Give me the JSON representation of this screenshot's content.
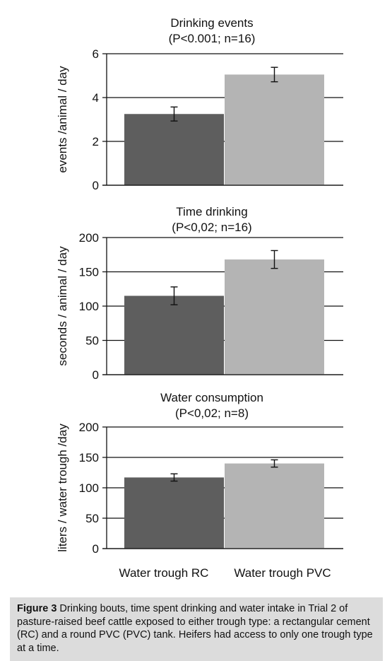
{
  "chart_data": [
    {
      "type": "bar",
      "title": "Drinking events",
      "subtitle": "(P<0.001; n=16)",
      "ylabel": "events /animal / day",
      "categories": [
        "Water trough RC",
        "Water trough PVC"
      ],
      "values": [
        3.25,
        5.05
      ],
      "errors": [
        0.32,
        0.33
      ],
      "ylim": [
        0,
        6
      ],
      "yticks": [
        0,
        2,
        4,
        6
      ],
      "colors": [
        "#5e5e5e",
        "#b4b4b4"
      ],
      "grid": true
    },
    {
      "type": "bar",
      "title": "Time drinking",
      "subtitle": "(P<0,02; n=16)",
      "ylabel": "seconds / animal / day",
      "categories": [
        "Water trough RC",
        "Water trough PVC"
      ],
      "values": [
        115,
        168
      ],
      "errors": [
        13,
        13
      ],
      "ylim": [
        0,
        200
      ],
      "yticks": [
        0,
        50,
        100,
        150,
        200
      ],
      "colors": [
        "#5e5e5e",
        "#b4b4b4"
      ],
      "grid": true
    },
    {
      "type": "bar",
      "title": "Water consumption",
      "subtitle": "(P<0,02; n=8)",
      "ylabel": "liters / water trough /day",
      "categories": [
        "Water trough RC",
        "Water trough PVC"
      ],
      "values": [
        117,
        140
      ],
      "errors": [
        6,
        6
      ],
      "ylim": [
        0,
        200
      ],
      "yticks": [
        0,
        50,
        100,
        150,
        200
      ],
      "colors": [
        "#5e5e5e",
        "#b4b4b4"
      ],
      "grid": true
    }
  ],
  "x_labels": [
    "Water trough RC",
    "Water trough PVC"
  ],
  "caption": {
    "label": "Figure 3",
    "text": " Drinking bouts, time spent drinking and water intake in Trial 2 of pasture-raised beef cattle exposed to either trough type: a rectangular cement (RC) and a round PVC (PVC) tank. Heifers had access to only one trough type at a time."
  }
}
